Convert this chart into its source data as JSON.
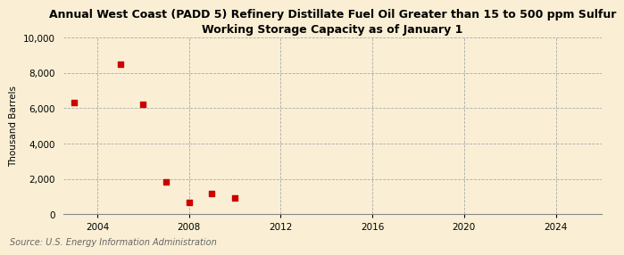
{
  "title": "Annual West Coast (PADD 5) Refinery Distillate Fuel Oil Greater than 15 to 500 ppm Sulfur\nWorking Storage Capacity as of January 1",
  "ylabel": "Thousand Barrels",
  "source": "Source: U.S. Energy Information Administration",
  "background_color": "#faefd4",
  "plot_bg_color": "#faefd4",
  "scatter_color": "#cc0000",
  "marker": "s",
  "marker_size": 4,
  "x_data": [
    2003,
    2005,
    2006,
    2007,
    2008,
    2009,
    2010
  ],
  "y_data": [
    6300,
    8500,
    6200,
    1850,
    700,
    1200,
    950
  ],
  "xlim": [
    2002.5,
    2026
  ],
  "ylim": [
    0,
    10000
  ],
  "xticks": [
    2004,
    2008,
    2012,
    2016,
    2020,
    2024
  ],
  "yticks": [
    0,
    2000,
    4000,
    6000,
    8000,
    10000
  ],
  "grid_color": "#aaaaaa",
  "grid_style": "--",
  "title_fontsize": 9,
  "label_fontsize": 7.5,
  "tick_fontsize": 7.5,
  "source_fontsize": 7
}
